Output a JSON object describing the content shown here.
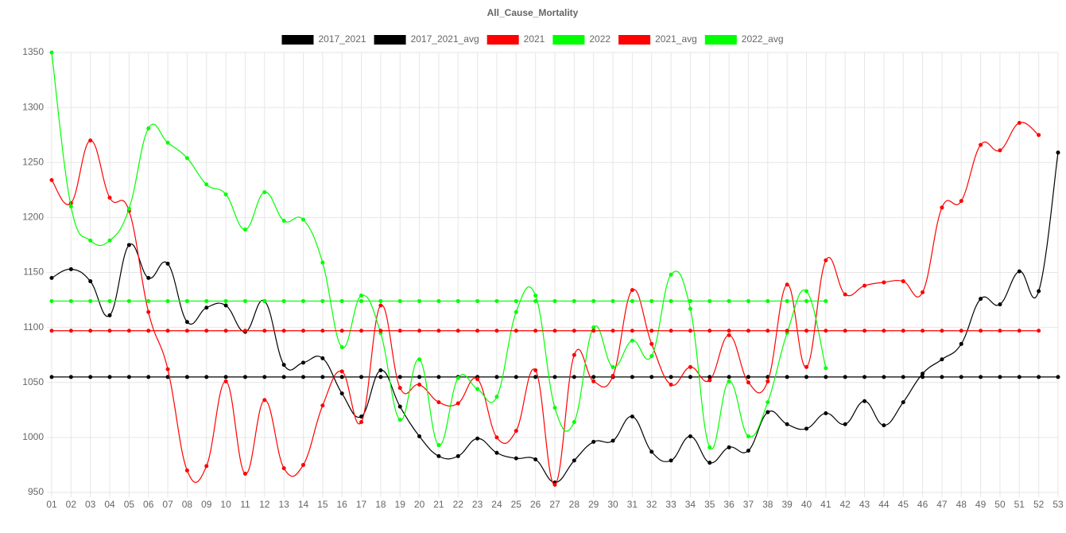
{
  "chart_data": {
    "type": "line",
    "title": "All_Cause_Mortality",
    "categories": [
      "01",
      "02",
      "03",
      "04",
      "05",
      "06",
      "07",
      "08",
      "09",
      "10",
      "11",
      "12",
      "13",
      "14",
      "15",
      "16",
      "17",
      "18",
      "19",
      "20",
      "21",
      "22",
      "23",
      "24",
      "25",
      "26",
      "27",
      "28",
      "29",
      "30",
      "31",
      "32",
      "33",
      "34",
      "35",
      "36",
      "37",
      "38",
      "39",
      "40",
      "41",
      "42",
      "43",
      "44",
      "45",
      "46",
      "47",
      "48",
      "49",
      "50",
      "51",
      "52",
      "53"
    ],
    "ylim": [
      950,
      1350
    ],
    "yticks": [
      950,
      1000,
      1050,
      1100,
      1150,
      1200,
      1250,
      1300,
      1350
    ],
    "grid": true,
    "legend": "top",
    "series": [
      {
        "name": "2017_2021",
        "color": "#000000",
        "values": [
          1145,
          1153,
          1142,
          1111,
          1175,
          1145,
          1158,
          1105,
          1118,
          1120,
          1096,
          1124,
          1066,
          1068,
          1072,
          1040,
          1019,
          1061,
          1028,
          1001,
          983,
          983,
          999,
          986,
          981,
          980,
          959,
          979,
          996,
          997,
          1019,
          987,
          979,
          1001,
          977,
          991,
          988,
          1023,
          1012,
          1008,
          1022,
          1012,
          1033,
          1011,
          1032,
          1058,
          1071,
          1085,
          1126,
          1121,
          1151,
          1133,
          1259
        ]
      },
      {
        "name": "2017_2021_avg",
        "color": "#000000",
        "values": [
          1055,
          1055,
          1055,
          1055,
          1055,
          1055,
          1055,
          1055,
          1055,
          1055,
          1055,
          1055,
          1055,
          1055,
          1055,
          1055,
          1055,
          1055,
          1055,
          1055,
          1055,
          1055,
          1055,
          1055,
          1055,
          1055,
          1055,
          1055,
          1055,
          1055,
          1055,
          1055,
          1055,
          1055,
          1055,
          1055,
          1055,
          1055,
          1055,
          1055,
          1055,
          1055,
          1055,
          1055,
          1055,
          1055,
          1055,
          1055,
          1055,
          1055,
          1055,
          1055,
          1055
        ]
      },
      {
        "name": "2021",
        "color": "#ff0000",
        "values": [
          1234,
          1213,
          1270,
          1218,
          1206,
          1114,
          1062,
          970,
          974,
          1051,
          967,
          1034,
          972,
          975,
          1029,
          1060,
          1014,
          1120,
          1045,
          1048,
          1032,
          1031,
          1053,
          1000,
          1006,
          1061,
          957,
          1075,
          1051,
          1056,
          1134,
          1085,
          1048,
          1064,
          1052,
          1093,
          1050,
          1051,
          1139,
          1064,
          1161,
          1130,
          1138,
          1141,
          1142,
          1132,
          1209,
          1215,
          1266,
          1261,
          1286,
          1275,
          null
        ]
      },
      {
        "name": "2022",
        "color": "#00ff00",
        "values": [
          1350,
          1210,
          1179,
          1179,
          1208,
          1281,
          1268,
          1254,
          1230,
          1221,
          1189,
          1223,
          1197,
          1198,
          1159,
          1082,
          1129,
          1095,
          1016,
          1071,
          993,
          1054,
          1044,
          1037,
          1114,
          1129,
          1027,
          1014,
          1100,
          1064,
          1088,
          1074,
          1148,
          1117,
          991,
          1051,
          1001,
          1032,
          1095,
          1133,
          1063,
          null,
          null,
          null,
          null,
          null,
          null,
          null,
          null,
          null,
          null,
          null,
          null
        ]
      },
      {
        "name": "2021_avg",
        "color": "#ff0000",
        "values": [
          1097,
          1097,
          1097,
          1097,
          1097,
          1097,
          1097,
          1097,
          1097,
          1097,
          1097,
          1097,
          1097,
          1097,
          1097,
          1097,
          1097,
          1097,
          1097,
          1097,
          1097,
          1097,
          1097,
          1097,
          1097,
          1097,
          1097,
          1097,
          1097,
          1097,
          1097,
          1097,
          1097,
          1097,
          1097,
          1097,
          1097,
          1097,
          1097,
          1097,
          1097,
          1097,
          1097,
          1097,
          1097,
          1097,
          1097,
          1097,
          1097,
          1097,
          1097,
          1097,
          null
        ]
      },
      {
        "name": "2022_avg",
        "color": "#00ff00",
        "values": [
          1124,
          1124,
          1124,
          1124,
          1124,
          1124,
          1124,
          1124,
          1124,
          1124,
          1124,
          1124,
          1124,
          1124,
          1124,
          1124,
          1124,
          1124,
          1124,
          1124,
          1124,
          1124,
          1124,
          1124,
          1124,
          1124,
          1124,
          1124,
          1124,
          1124,
          1124,
          1124,
          1124,
          1124,
          1124,
          1124,
          1124,
          1124,
          1124,
          1124,
          1124,
          null,
          null,
          null,
          null,
          null,
          null,
          null,
          null,
          null,
          null,
          null,
          null
        ]
      }
    ]
  }
}
